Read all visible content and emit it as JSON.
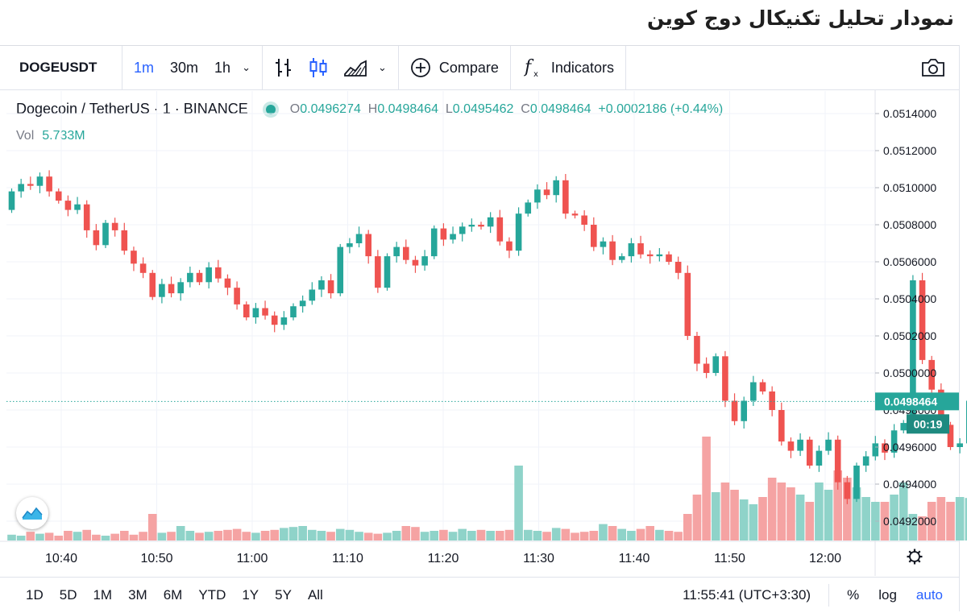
{
  "page_title": "نمودار تحلیل تکنیکال دوج کوین",
  "toolbar": {
    "symbol": "DOGEUSDT",
    "intervals": [
      "1m",
      "30m",
      "1h"
    ],
    "active_interval": "1m",
    "compare_label": "Compare",
    "indicators_label": "Indicators"
  },
  "legend": {
    "title": "Dogecoin / TetherUS · 1 · BINANCE",
    "o_label": "O",
    "o": "0.0496274",
    "h_label": "H",
    "h": "0.0498464",
    "l_label": "L",
    "l": "0.0495462",
    "c_label": "C",
    "c": "0.0498464",
    "change": "+0.0002186 (+0.44%)",
    "vol_label": "Vol",
    "vol": "5.733M"
  },
  "price_tag": {
    "value": "0.0498464",
    "countdown": "00:19"
  },
  "bottombar": {
    "ranges": [
      "1D",
      "5D",
      "1M",
      "3M",
      "6M",
      "YTD",
      "1Y",
      "5Y",
      "All"
    ],
    "clock": "11:55:41 (UTC+3:30)",
    "percent_label": "%",
    "log_label": "log",
    "auto_label": "auto"
  },
  "colors": {
    "up": "#26a69a",
    "down": "#ef5350",
    "up_vol": "#8fd3c9",
    "down_vol": "#f5a3a3",
    "accent": "#2962ff"
  },
  "chart_data": {
    "type": "candlestick",
    "symbol": "DOGEUSDT",
    "timeframe": "1m",
    "start_time": "10:35",
    "y_ticks": [
      "0.0514000",
      "0.0512000",
      "0.0510000",
      "0.0508000",
      "0.0506000",
      "0.0504000",
      "0.0502000",
      "0.0500000",
      "0.0498000",
      "0.0496000",
      "0.0494000",
      "0.0492000"
    ],
    "ylim": [
      0.04915,
      0.05145
    ],
    "x_ticks": [
      "10:40",
      "10:50",
      "11:00",
      "11:10",
      "11:20",
      "11:30",
      "11:40",
      "11:50",
      "12:00"
    ],
    "last_price": 0.0498464,
    "close": [
      0.05098,
      0.05102,
      0.05101,
      0.05106,
      0.05098,
      0.05093,
      0.05088,
      0.05091,
      0.05077,
      0.05069,
      0.05081,
      0.05077,
      0.05066,
      0.05059,
      0.05054,
      0.05041,
      0.05048,
      0.05043,
      0.05049,
      0.05054,
      0.05049,
      0.05057,
      0.05051,
      0.05046,
      0.05037,
      0.0503,
      0.05035,
      0.05031,
      0.05026,
      0.0503,
      0.05036,
      0.05039,
      0.05045,
      0.0505,
      0.05043,
      0.05068,
      0.0507,
      0.05075,
      0.05063,
      0.05046,
      0.05063,
      0.05068,
      0.05061,
      0.05058,
      0.05063,
      0.05078,
      0.05072,
      0.05075,
      0.05079,
      0.0508,
      0.05079,
      0.05084,
      0.05071,
      0.05066,
      0.05086,
      0.05092,
      0.05099,
      0.05096,
      0.05104,
      0.05086,
      0.05085,
      0.0508,
      0.05068,
      0.05071,
      0.05061,
      0.05063,
      0.0507,
      0.05064,
      0.05063,
      0.05064,
      0.0506,
      0.05054,
      0.0502,
      0.05005,
      0.05,
      0.05009,
      0.04985,
      0.04974,
      0.04985,
      0.04995,
      0.0499,
      0.0498,
      0.04963,
      0.04958,
      0.04964,
      0.0495,
      0.04958,
      0.04964,
      0.04941,
      0.04932,
      0.0495,
      0.04955,
      0.04962,
      0.04957,
      0.04969,
      0.04973,
      0.0505,
      0.05007,
      0.04991,
      0.04972,
      0.0496,
      0.04962,
      0.04985
    ]
  }
}
